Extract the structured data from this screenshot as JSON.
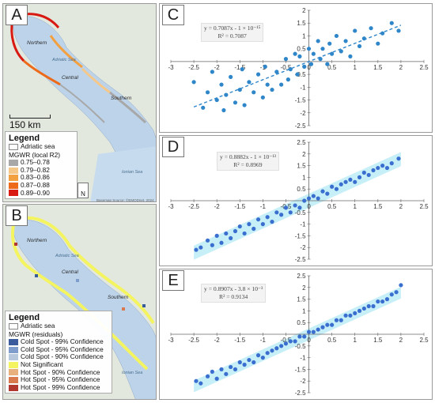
{
  "panel_a": {
    "letter": "A",
    "scale_label": "150 km",
    "north_label": "N",
    "basemap_credit": "Basemap Source: ©EMODnet, 2024",
    "region_labels": [
      "Northern",
      "Central",
      "Southern"
    ],
    "sea_labels": [
      "Adriatic Sea",
      "Ionian Sea"
    ],
    "legend": {
      "title": "Legend",
      "sea_label": "Adriatic sea",
      "subtitle": "MGWR (local R2)",
      "classes": [
        {
          "label": "0.75–0.78",
          "color": "#a8a8a8"
        },
        {
          "label": "0.79–0.82",
          "color": "#f5c88a"
        },
        {
          "label": "0.83–0.86",
          "color": "#f2a040"
        },
        {
          "label": "0.87–0.88",
          "color": "#ec6a1a"
        },
        {
          "label": "0.89–0.90",
          "color": "#d81a12"
        }
      ]
    }
  },
  "panel_b": {
    "letter": "B",
    "region_labels": [
      "Northern",
      "Central",
      "Southern"
    ],
    "sea_labels": [
      "Adriatic Sea",
      "Ionian Sea"
    ],
    "legend": {
      "title": "Legend",
      "sea_label": "Adriatic sea",
      "subtitle": "MGWR (residuals)",
      "classes": [
        {
          "label": "Cold Spot - 99% Confidence",
          "color": "#3a5c9c"
        },
        {
          "label": "Cold Spot - 95% Confidence",
          "color": "#7e9ccc"
        },
        {
          "label": "Cold Spot - 90% Confidence",
          "color": "#b8c8dc"
        },
        {
          "label": "Not Significant",
          "color": "#f4f460"
        },
        {
          "label": "Hot Spot - 90% Confidence",
          "color": "#e8b07c"
        },
        {
          "label": "Hot Spot - 95% Confidence",
          "color": "#d97a4e"
        },
        {
          "label": "Hot Spot - 99% Confidence",
          "color": "#b0382e"
        }
      ]
    }
  },
  "chart_data": [
    {
      "type": "scatter",
      "panel": "C",
      "equation": "y = 0.7087x - 1 × 10⁻¹⁵",
      "r2": "R² = 0.7087",
      "slope": 0.7087,
      "intercept": 0,
      "xlim": [
        -3,
        2.5
      ],
      "ylim": [
        -2.5,
        2
      ],
      "xticks": [
        -3,
        -2.5,
        -2,
        -1.5,
        -1,
        -0.5,
        0,
        0.5,
        1,
        1.5,
        2,
        2.5
      ],
      "yticks": [
        -2.5,
        -2,
        -1.5,
        -1,
        -0.5,
        0,
        0.5,
        1,
        1.5,
        2
      ],
      "point_color": "#2f86c9",
      "trendline": "dashed",
      "noise": 0.55,
      "points": [
        [
          -2.5,
          -0.8
        ],
        [
          -2.3,
          -1.8
        ],
        [
          -2.2,
          -1.2
        ],
        [
          -2.1,
          -0.4
        ],
        [
          -2,
          -1.5
        ],
        [
          -1.9,
          -0.9
        ],
        [
          -1.85,
          -1.9
        ],
        [
          -1.8,
          -1.3
        ],
        [
          -1.7,
          -0.6
        ],
        [
          -1.6,
          -1.6
        ],
        [
          -1.5,
          -1.1
        ],
        [
          -1.45,
          -0.3
        ],
        [
          -1.4,
          -1.7
        ],
        [
          -1.3,
          -0.8
        ],
        [
          -1.2,
          -1.2
        ],
        [
          -1.1,
          -0.5
        ],
        [
          -1,
          -1.4
        ],
        [
          -0.95,
          -0.2
        ],
        [
          -0.9,
          -0.9
        ],
        [
          -0.8,
          -1.1
        ],
        [
          -0.7,
          -0.4
        ],
        [
          -0.6,
          -0.9
        ],
        [
          -0.5,
          0.1
        ],
        [
          -0.45,
          -0.7
        ],
        [
          -0.4,
          -0.3
        ],
        [
          -0.3,
          0.3
        ],
        [
          -0.25,
          -0.5
        ],
        [
          -0.2,
          0.2
        ],
        [
          -0.1,
          -0.2
        ],
        [
          0,
          0.5
        ],
        [
          0.05,
          -0.1
        ],
        [
          0.1,
          0.3
        ],
        [
          0.2,
          0.8
        ],
        [
          0.25,
          0.1
        ],
        [
          0.3,
          0.5
        ],
        [
          0.4,
          -0.1
        ],
        [
          0.45,
          0.7
        ],
        [
          0.5,
          0.3
        ],
        [
          0.6,
          1
        ],
        [
          0.7,
          0.4
        ],
        [
          0.8,
          0.8
        ],
        [
          0.9,
          0.2
        ],
        [
          1,
          1.2
        ],
        [
          1.1,
          0.6
        ],
        [
          1.2,
          0.9
        ],
        [
          1.35,
          1.3
        ],
        [
          1.5,
          0.7
        ],
        [
          1.6,
          1.1
        ],
        [
          1.8,
          1.5
        ],
        [
          1.95,
          1.2
        ]
      ]
    },
    {
      "type": "scatter",
      "panel": "D",
      "equation": "y = 0.8882x - 1 × 10⁻¹³",
      "r2": "R² = 0.8969",
      "slope": 0.8882,
      "intercept": 0,
      "xlim": [
        -3,
        2.5
      ],
      "ylim": [
        -2.5,
        2.5
      ],
      "xticks": [
        -3,
        -2.5,
        -2,
        -1.5,
        -1,
        -0.5,
        0,
        0.5,
        1,
        1.5,
        2,
        2.5
      ],
      "yticks": [
        -2.5,
        -2,
        -1.5,
        -1,
        -0.5,
        0,
        0.5,
        1,
        1.5,
        2,
        2.5
      ],
      "point_color": "#3a6fd0",
      "trendline": "band",
      "noise": 0.3,
      "points": [
        [
          -2.45,
          -2.1
        ],
        [
          -2.35,
          -2
        ],
        [
          -2.2,
          -1.7
        ],
        [
          -2.1,
          -1.9
        ],
        [
          -2,
          -1.5
        ],
        [
          -1.9,
          -1.8
        ],
        [
          -1.8,
          -1.4
        ],
        [
          -1.7,
          -1.6
        ],
        [
          -1.6,
          -1.3
        ],
        [
          -1.5,
          -1.1
        ],
        [
          -1.4,
          -1.4
        ],
        [
          -1.3,
          -1
        ],
        [
          -1.2,
          -1.2
        ],
        [
          -1.1,
          -0.8
        ],
        [
          -1,
          -1
        ],
        [
          -0.9,
          -0.7
        ],
        [
          -0.8,
          -0.9
        ],
        [
          -0.7,
          -0.5
        ],
        [
          -0.6,
          -0.6
        ],
        [
          -0.5,
          -0.3
        ],
        [
          -0.4,
          -0.5
        ],
        [
          -0.3,
          -0.2
        ],
        [
          -0.2,
          -0.3
        ],
        [
          -0.1,
          0
        ],
        [
          0,
          0.1
        ],
        [
          0.1,
          0.2
        ],
        [
          0.2,
          0.1
        ],
        [
          0.3,
          0.4
        ],
        [
          0.4,
          0.3
        ],
        [
          0.5,
          0.6
        ],
        [
          0.6,
          0.5
        ],
        [
          0.7,
          0.7
        ],
        [
          0.8,
          0.8
        ],
        [
          0.9,
          0.9
        ],
        [
          1,
          0.8
        ],
        [
          1.1,
          1
        ],
        [
          1.2,
          1.2
        ],
        [
          1.3,
          1.1
        ],
        [
          1.4,
          1.3
        ],
        [
          1.5,
          1.4
        ],
        [
          1.6,
          1.5
        ],
        [
          1.7,
          1.4
        ],
        [
          1.8,
          1.6
        ],
        [
          1.95,
          1.8
        ]
      ]
    },
    {
      "type": "scatter",
      "panel": "E",
      "equation": "y = 0.8907x - 3.8 × 10⁻³",
      "r2": "R² = 0.9134",
      "slope": 0.8907,
      "intercept": -0.0038,
      "xlim": [
        -3,
        2.5
      ],
      "ylim": [
        -2.5,
        2.5
      ],
      "xticks": [
        -3,
        -2.5,
        -2,
        -1.5,
        -1,
        -0.5,
        0,
        0.5,
        1,
        1.5,
        2,
        2.5
      ],
      "yticks": [
        -2.5,
        -2,
        -1.5,
        -1,
        -0.5,
        0,
        0.5,
        1,
        1.5,
        2,
        2.5
      ],
      "point_color": "#3a6fd0",
      "trendline": "band",
      "noise": 0.25,
      "points": [
        [
          -2.45,
          -2
        ],
        [
          -2.35,
          -2.1
        ],
        [
          -2.2,
          -1.8
        ],
        [
          -2.1,
          -1.6
        ],
        [
          -2,
          -1.9
        ],
        [
          -1.9,
          -1.5
        ],
        [
          -1.8,
          -1.7
        ],
        [
          -1.7,
          -1.4
        ],
        [
          -1.6,
          -1.5
        ],
        [
          -1.5,
          -1.2
        ],
        [
          -1.4,
          -1.3
        ],
        [
          -1.3,
          -1.1
        ],
        [
          -1.2,
          -1.2
        ],
        [
          -1.1,
          -0.9
        ],
        [
          -1,
          -1
        ],
        [
          -0.9,
          -0.8
        ],
        [
          -0.8,
          -0.7
        ],
        [
          -0.7,
          -0.6
        ],
        [
          -0.6,
          -0.5
        ],
        [
          -0.5,
          -0.4
        ],
        [
          -0.4,
          -0.3
        ],
        [
          -0.3,
          -0.3
        ],
        [
          -0.2,
          -0.1
        ],
        [
          -0.1,
          -0.1
        ],
        [
          0,
          0.1
        ],
        [
          0.1,
          0.1
        ],
        [
          0.2,
          0.2
        ],
        [
          0.3,
          0.3
        ],
        [
          0.4,
          0.4
        ],
        [
          0.5,
          0.4
        ],
        [
          0.6,
          0.6
        ],
        [
          0.7,
          0.6
        ],
        [
          0.8,
          0.8
        ],
        [
          0.9,
          0.8
        ],
        [
          1,
          0.9
        ],
        [
          1.1,
          1
        ],
        [
          1.2,
          1.1
        ],
        [
          1.3,
          1.2
        ],
        [
          1.4,
          1.2
        ],
        [
          1.5,
          1.4
        ],
        [
          1.6,
          1.4
        ],
        [
          1.7,
          1.5
        ],
        [
          1.8,
          1.7
        ],
        [
          1.9,
          1.8
        ],
        [
          2,
          2.1
        ]
      ]
    }
  ]
}
